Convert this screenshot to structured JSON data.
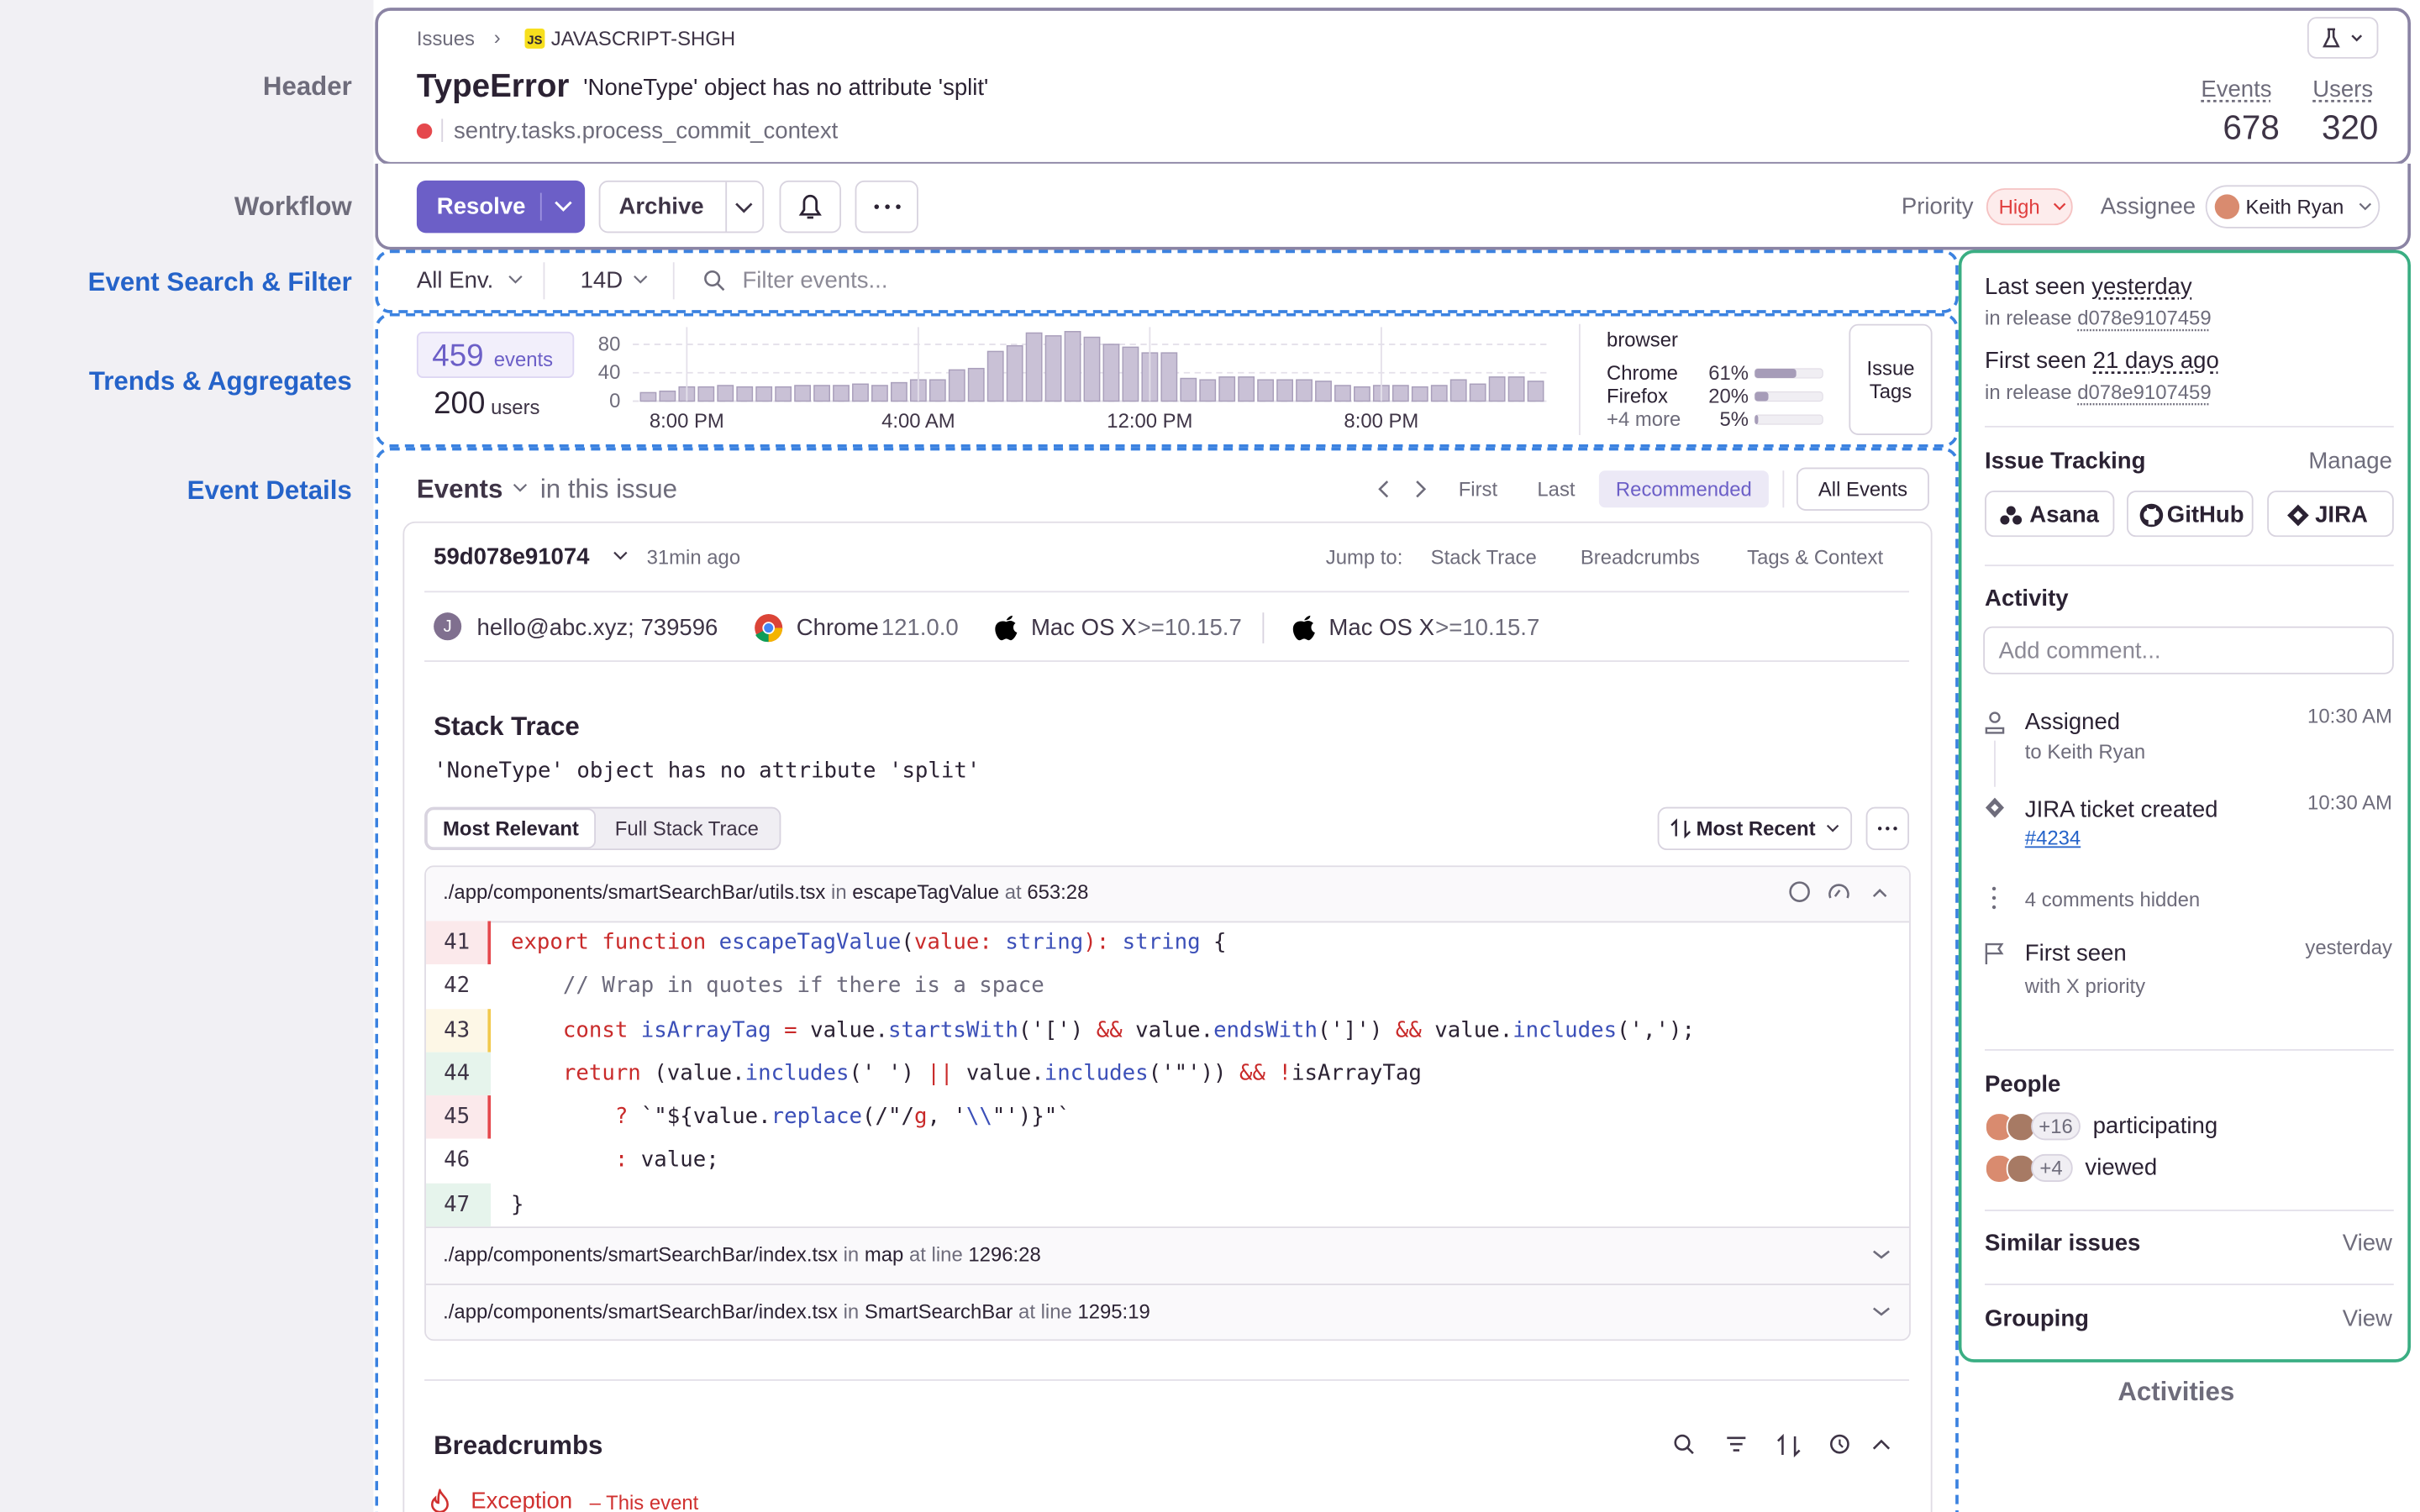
{
  "sections": {
    "header": "Header",
    "workflow": "Workflow",
    "search": "Event Search & Filter",
    "trends": "Trends & Aggregates",
    "details": "Event Details",
    "activities": "Activities"
  },
  "header": {
    "breadcrumb": "Issues",
    "project_badge": "JS",
    "project": "JAVASCRIPT-SHGH",
    "title": "TypeError",
    "message": "'NoneType' object has no attribute 'split'",
    "culprit": "sentry.tasks.process_commit_context",
    "stats": [
      {
        "label": "Events",
        "value": 678
      },
      {
        "label": "Users",
        "value": 320
      }
    ]
  },
  "workflow": {
    "resolve": "Resolve",
    "archive": "Archive",
    "priority_label": "Priority",
    "priority": "High",
    "assignee_label": "Assignee",
    "assignee": "Keith Ryan"
  },
  "filter": {
    "environment": "All Env.",
    "period": "14D",
    "search_placeholder": "Filter events..."
  },
  "trends": {
    "events_count": 459,
    "events_label": "events",
    "users_count": 200,
    "users_label": "users",
    "chart_data": {
      "type": "bar",
      "categories": [
        null,
        null,
        "8:00 PM",
        null,
        null,
        null,
        null,
        null,
        null,
        null,
        null,
        null,
        null,
        null,
        "4:00 AM",
        null,
        null,
        null,
        null,
        null,
        null,
        null,
        null,
        null,
        null,
        null,
        "12:00 PM",
        null,
        null,
        null,
        null,
        null,
        null,
        null,
        null,
        null,
        null,
        null,
        "8:00 PM",
        null,
        null,
        null,
        null,
        null,
        null,
        null,
        null
      ],
      "values": [
        12,
        14,
        20,
        20,
        22,
        20,
        20,
        20,
        22,
        22,
        22,
        24,
        22,
        26,
        30,
        30,
        44,
        46,
        70,
        78,
        96,
        92,
        98,
        90,
        80,
        76,
        68,
        68,
        32,
        30,
        34,
        34,
        30,
        30,
        30,
        28,
        22,
        20,
        22,
        22,
        20,
        22,
        30,
        24,
        34,
        34,
        28
      ],
      "color": "#c9c1d6",
      "ylim": [
        0,
        100
      ],
      "yticks": [
        0,
        40,
        80
      ],
      "grid": true
    },
    "tags": {
      "title": "browser",
      "names": [
        "Chrome",
        "Firefox",
        "+4 more"
      ],
      "values": [
        61,
        20,
        5
      ],
      "value_labels": [
        "61%",
        "20%",
        "5%"
      ],
      "color": "#a69cb8"
    },
    "tags_button": "Issue Tags"
  },
  "events": {
    "title": "Events",
    "subtitle": "in this issue",
    "nav": [
      "First",
      "Last",
      "Recommended"
    ],
    "all_events": "All Events",
    "event_id": "59d078e91074",
    "age": "31min ago",
    "jump_label": "Jump to:",
    "jump_links": [
      "Stack Trace",
      "Breadcrumbs",
      "Tags & Context"
    ],
    "user_initial": "J",
    "user": "hello@abc.xyz; 739596",
    "browser": "Chrome",
    "browser_version": "121.0.0",
    "os": [
      {
        "name": "Mac OS X",
        "version": ">=10.15.7"
      },
      {
        "name": "Mac OS X",
        "version": ">=10.15.7"
      }
    ]
  },
  "stack_trace": {
    "title": "Stack Trace",
    "message": "'NoneType' object has no attribute 'split'",
    "views": [
      "Most Relevant",
      "Full Stack Trace"
    ],
    "sort": "Most Recent",
    "frames": [
      {
        "file": "./app/components/smartSearchBar/utils.tsx",
        "in": "in",
        "function": "escapeTagValue",
        "at": "at",
        "location": "653:28"
      },
      {
        "file": "./app/components/smartSearchBar/index.tsx",
        "in": "in",
        "function": "map",
        "at": "at line",
        "location": "1296:28"
      },
      {
        "file": "./app/components/smartSearchBar/index.tsx",
        "in": "in",
        "function": "SmartSearchBar",
        "at": "at line",
        "location": "1295:19"
      }
    ],
    "lines": [
      {
        "number": 41,
        "highlight": "#fbe9eb",
        "marker": "#e5484d",
        "tokens": [
          {
            "text": "export function ",
            "color": "#c92a2a"
          },
          {
            "text": "escapeTagValue",
            "color": "#3b4fb8"
          },
          "(",
          {
            "text": "value: ",
            "color": "#c92a2a"
          },
          {
            "text": "string",
            "color": "#3b4fb8"
          },
          {
            "text": "): ",
            "color": "#c92a2a"
          },
          {
            "text": "string",
            "color": "#3b4fb8"
          },
          " {"
        ]
      },
      {
        "number": 42,
        "tokens": [
          {
            "text": "    // Wrap in quotes if there is a space",
            "color": "#6c6a7c"
          }
        ]
      },
      {
        "number": 43,
        "highlight": "#fdf7e6",
        "marker": "#f2c94c",
        "tokens": [
          "    ",
          {
            "text": "const ",
            "color": "#c92a2a"
          },
          {
            "text": "isArrayTag",
            "color": "#3b4fb8"
          },
          {
            "text": " = ",
            "color": "#c92a2a"
          },
          "value.",
          {
            "text": "startsWith",
            "color": "#3b4fb8"
          },
          "('[') ",
          {
            "text": "&&",
            "color": "#c92a2a"
          },
          " value.",
          {
            "text": "endsWith",
            "color": "#3b4fb8"
          },
          "(']') ",
          {
            "text": "&&",
            "color": "#c92a2a"
          },
          " value.",
          {
            "text": "includes",
            "color": "#3b4fb8"
          },
          "(',');"
        ]
      },
      {
        "number": 44,
        "highlight": "#e6f4ec",
        "tokens": [
          "    ",
          {
            "text": "return",
            "color": "#c92a2a"
          },
          " (value.",
          {
            "text": "includes",
            "color": "#3b4fb8"
          },
          "(' ') ",
          {
            "text": "||",
            "color": "#c92a2a"
          },
          " value.",
          {
            "text": "includes",
            "color": "#3b4fb8"
          },
          "('\"')) ",
          {
            "text": "&&",
            "color": "#c92a2a"
          },
          " ",
          {
            "text": "!",
            "color": "#c92a2a"
          },
          "isArrayTag"
        ]
      },
      {
        "number": 45,
        "highlight": "#fbe9eb",
        "marker": "#e5484d",
        "tokens": [
          "        ",
          {
            "text": "? ",
            "color": "#c92a2a"
          },
          "`\"${value.",
          {
            "text": "replace",
            "color": "#3b4fb8"
          },
          "(/\"/",
          {
            "text": "g",
            "color": "#c92a2a"
          },
          ", '",
          {
            "text": "\\\\",
            "color": "#3b4fb8"
          },
          "\"')}\"`"
        ]
      },
      {
        "number": 46,
        "tokens": [
          "        ",
          {
            "text": ": ",
            "color": "#c92a2a"
          },
          "value;"
        ]
      },
      {
        "number": 47,
        "highlight": "#e6f4ec",
        "tokens": [
          "}"
        ]
      }
    ]
  },
  "breadcrumbs": {
    "title": "Breadcrumbs",
    "first": "Exception",
    "first_note": "– This event"
  },
  "sidebar": {
    "last_seen_label": "Last seen",
    "last_seen": "yesterday",
    "first_seen_label": "First seen",
    "first_seen": "21 days ago",
    "release_label": "in release",
    "release": "d078e9107459",
    "issue_tracking": "Issue Tracking",
    "manage": "Manage",
    "integrations": [
      "Asana",
      "GitHub",
      "JIRA"
    ],
    "activity": "Activity",
    "comment_placeholder": "Add comment...",
    "items": [
      {
        "title": "Assigned",
        "detail": "to Keith Ryan",
        "time": "10:30 AM"
      },
      {
        "title": "JIRA ticket created",
        "detail": "#4234",
        "time": "10:30 AM"
      },
      {
        "title": "4 comments hidden"
      },
      {
        "title": "First seen",
        "detail": "with X priority",
        "time": "yesterday"
      }
    ],
    "people": "People",
    "participating_extra": "+16",
    "participating": "participating",
    "viewed_extra": "+4",
    "viewed": "viewed",
    "similar": "Similar issues",
    "grouping": "Grouping",
    "view": "View"
  }
}
